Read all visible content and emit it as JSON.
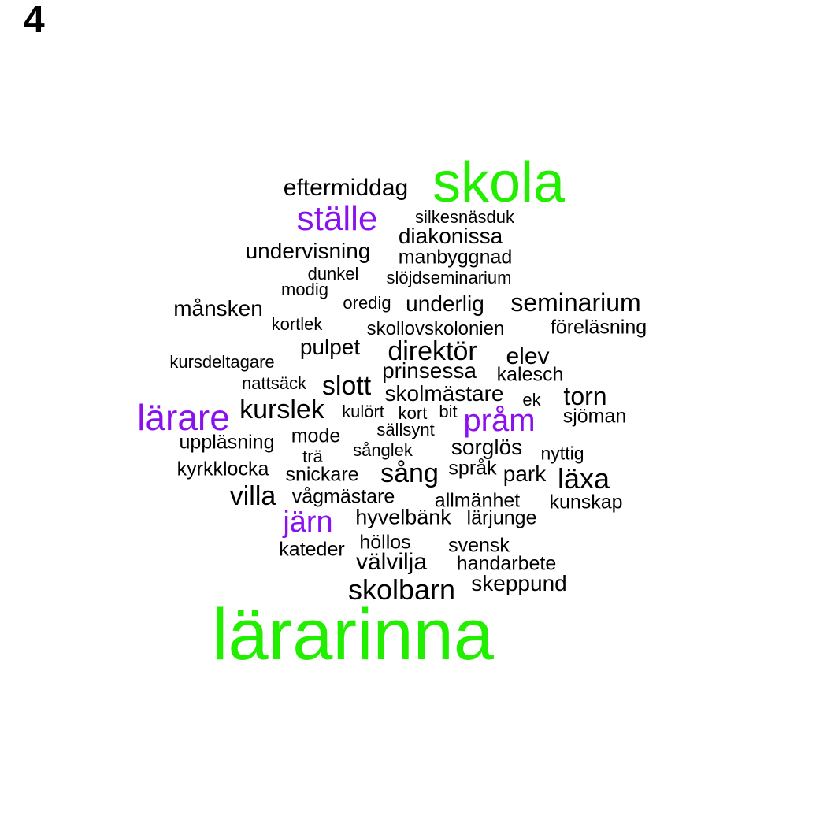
{
  "panel_label": "4",
  "colors": {
    "tier_high": "#22ee00",
    "tier_mid": "#8a10ee",
    "tier_low": "#000000"
  },
  "words": [
    {
      "text": "lärarinna",
      "tier": "high"
    },
    {
      "text": "skola",
      "tier": "high"
    },
    {
      "text": "ställe",
      "tier": "mid"
    },
    {
      "text": "lärare",
      "tier": "mid"
    },
    {
      "text": "pråm",
      "tier": "mid"
    },
    {
      "text": "järn",
      "tier": "mid"
    },
    {
      "text": "eftermiddag",
      "tier": "low"
    },
    {
      "text": "silkesnäsduk",
      "tier": "low"
    },
    {
      "text": "diakonissa",
      "tier": "low"
    },
    {
      "text": "undervisning",
      "tier": "low"
    },
    {
      "text": "manbyggnad",
      "tier": "low"
    },
    {
      "text": "dunkel",
      "tier": "low"
    },
    {
      "text": "slöjdseminarium",
      "tier": "low"
    },
    {
      "text": "modig",
      "tier": "low"
    },
    {
      "text": "månsken",
      "tier": "low"
    },
    {
      "text": "oredig",
      "tier": "low"
    },
    {
      "text": "underlig",
      "tier": "low"
    },
    {
      "text": "seminarium",
      "tier": "low"
    },
    {
      "text": "kortlek",
      "tier": "low"
    },
    {
      "text": "skollovskolonien",
      "tier": "low"
    },
    {
      "text": "föreläsning",
      "tier": "low"
    },
    {
      "text": "pulpet",
      "tier": "low"
    },
    {
      "text": "direktör",
      "tier": "low"
    },
    {
      "text": "elev",
      "tier": "low"
    },
    {
      "text": "kursdeltagare",
      "tier": "low"
    },
    {
      "text": "prinsessa",
      "tier": "low"
    },
    {
      "text": "kalesch",
      "tier": "low"
    },
    {
      "text": "nattsäck",
      "tier": "low"
    },
    {
      "text": "slott",
      "tier": "low"
    },
    {
      "text": "skolmästare",
      "tier": "low"
    },
    {
      "text": "ek",
      "tier": "low"
    },
    {
      "text": "torn",
      "tier": "low"
    },
    {
      "text": "kurslek",
      "tier": "low"
    },
    {
      "text": "kulört",
      "tier": "low"
    },
    {
      "text": "kort",
      "tier": "low"
    },
    {
      "text": "bit",
      "tier": "low"
    },
    {
      "text": "sjöman",
      "tier": "low"
    },
    {
      "text": "mode",
      "tier": "low"
    },
    {
      "text": "sällsynt",
      "tier": "low"
    },
    {
      "text": "uppläsning",
      "tier": "low"
    },
    {
      "text": "sorglös",
      "tier": "low"
    },
    {
      "text": "trä",
      "tier": "low"
    },
    {
      "text": "sånglek",
      "tier": "low"
    },
    {
      "text": "nyttig",
      "tier": "low"
    },
    {
      "text": "kyrkklocka",
      "tier": "low"
    },
    {
      "text": "snickare",
      "tier": "low"
    },
    {
      "text": "sång",
      "tier": "low"
    },
    {
      "text": "språk",
      "tier": "low"
    },
    {
      "text": "park",
      "tier": "low"
    },
    {
      "text": "läxa",
      "tier": "low"
    },
    {
      "text": "villa",
      "tier": "low"
    },
    {
      "text": "vågmästare",
      "tier": "low"
    },
    {
      "text": "allmänhet",
      "tier": "low"
    },
    {
      "text": "kunskap",
      "tier": "low"
    },
    {
      "text": "hyvelbänk",
      "tier": "low"
    },
    {
      "text": "lärjunge",
      "tier": "low"
    },
    {
      "text": "höllos",
      "tier": "low"
    },
    {
      "text": "svensk",
      "tier": "low"
    },
    {
      "text": "kateder",
      "tier": "low"
    },
    {
      "text": "välvilja",
      "tier": "low"
    },
    {
      "text": "handarbete",
      "tier": "low"
    },
    {
      "text": "skolbarn",
      "tier": "low"
    },
    {
      "text": "skeppund",
      "tier": "low"
    }
  ]
}
